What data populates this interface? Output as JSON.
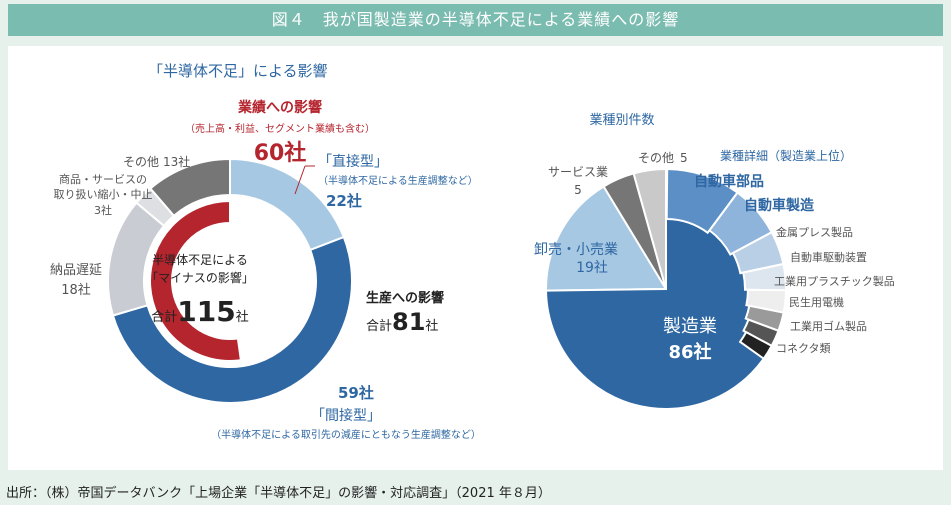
{
  "title": "図４　我が国製造業の半導体不足による業績への影響",
  "source": "出所：（株）帝国データバンク「上場企業「半導体不足」の影響・対応調査」（2021 年８月）",
  "colors": {
    "dark_blue": "#2e67a2",
    "light_blue": "#a6c8e3",
    "red": "#b5252e",
    "gray_dark": "#767676",
    "gray_light": "#c9c9c9",
    "gray_pale": "#d6d8dc",
    "mid_blue": "#5d8fc7"
  },
  "chart_data": [
    {
      "type": "donut",
      "title": "「半導体不足」による影響",
      "center_text": [
        "半導体不足による",
        "「マイナスの影響」"
      ],
      "center_total_prefix": "合計",
      "center_total_value": "115",
      "center_total_unit": "社",
      "outer_series": [
        {
          "name": "「直接型」",
          "value": 22,
          "label_value": "22社",
          "note": "（半導体不足による生産調整など）",
          "color": "#a6c8e3"
        },
        {
          "name": "「間接型」",
          "value": 59,
          "label_value": "59社",
          "note": "（半導体不足による取引先の減産にともなう生産調整など）",
          "color": "#2e67a2"
        },
        {
          "name": "納品遅延",
          "value": 18,
          "label_value": "18社",
          "color": "#c9ccd3"
        },
        {
          "name": "商品・サービスの取り扱い縮小・中止",
          "name_lines": [
            "商品・サービスの",
            "取り扱い縮小・中止"
          ],
          "value": 3,
          "label_value": "3社",
          "color": "#dddfe3"
        },
        {
          "name": "その他",
          "value": 13,
          "label_value": "13社",
          "color": "#767676"
        }
      ],
      "inner_series": [
        {
          "name": "業績への影響",
          "value": 60,
          "label_value": "60社",
          "note": "（売上高・利益、セグメント業績も含む）",
          "color": "#b5252e"
        }
      ],
      "production_label": "生産への影響",
      "production_total_prefix": "合計",
      "production_total_value": "81",
      "production_total_unit": "社"
    },
    {
      "type": "pie",
      "title": "業種別件数",
      "slices": [
        {
          "name": "製造業",
          "value": 86,
          "label_value": "86社",
          "color": "#2e67a2"
        },
        {
          "name": "卸売・小売業",
          "value": 19,
          "label_value": "19社",
          "color": "#a6c8e3"
        },
        {
          "name": "サービス業",
          "value": 5,
          "label_value": "5",
          "color": "#767676"
        },
        {
          "name": "その他",
          "value": 5,
          "label_value": "5",
          "color": "#c9c9c9"
        }
      ],
      "breakdown_title": "業種詳細（製造業上位）",
      "breakdown": [
        {
          "name": "自動車部品",
          "color": "#5d8fc7"
        },
        {
          "name": "自動車製造",
          "color": "#8fb4dc"
        },
        {
          "name": "金属プレス製品",
          "color": "#b9cfe6"
        },
        {
          "name": "自動車駆動装置",
          "color": "#dde6ef"
        },
        {
          "name": "工業用プラスチック製品",
          "color": "#eeeeee"
        },
        {
          "name": "民生用電機",
          "color": "#9a9a9a"
        },
        {
          "name": "工業用ゴム製品",
          "color": "#555555"
        },
        {
          "name": "コネクタ類",
          "color": "#222222"
        }
      ]
    }
  ]
}
